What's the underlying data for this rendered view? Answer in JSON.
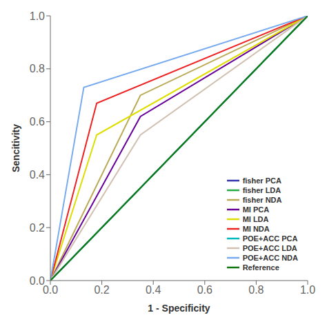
{
  "chart_data": {
    "type": "line",
    "title": "",
    "xlabel": "1 - Specificity",
    "ylabel": "Sencitivity",
    "xlim": [
      0.0,
      1.0
    ],
    "ylim": [
      0.0,
      1.0
    ],
    "xticks": [
      {
        "value": 0.0,
        "label": "0.0"
      },
      0.2,
      0.4,
      0.6,
      0.8,
      {
        "value": 1.0,
        "label": "1.0"
      }
    ],
    "yticks": [
      {
        "value": 0.0,
        "label": "0.0"
      },
      0.2,
      0.4,
      0.6,
      0.8,
      {
        "value": 1.0,
        "label": "1.0"
      }
    ],
    "grid": false,
    "legend": "lower right",
    "series": [
      {
        "name": "fisher PCA",
        "color": "#3333AA",
        "x": [
          0.0,
          1.0
        ],
        "values": [
          0.0,
          1.0
        ]
      },
      {
        "name": "fisher LDA",
        "color": "#22AA44",
        "x": [
          0.0,
          1.0
        ],
        "values": [
          0.0,
          1.0
        ]
      },
      {
        "name": "fisher NDA",
        "color": "#BBAA55",
        "x": [
          0.0,
          0.35,
          1.0
        ],
        "values": [
          0.0,
          0.7,
          1.0
        ]
      },
      {
        "name": "MI PCA",
        "color": "#660099",
        "x": [
          0.0,
          0.35,
          1.0
        ],
        "values": [
          0.0,
          0.62,
          1.0
        ]
      },
      {
        "name": "MI LDA",
        "color": "#DDDD00",
        "x": [
          0.0,
          0.18,
          1.0
        ],
        "values": [
          0.0,
          0.55,
          1.0
        ]
      },
      {
        "name": "MI NDA",
        "color": "#EE2222",
        "x": [
          0.0,
          0.18,
          1.0
        ],
        "values": [
          0.0,
          0.67,
          1.0
        ]
      },
      {
        "name": "POE+ACC PCA",
        "color": "#00BBBB",
        "x": [
          0.0,
          1.0
        ],
        "values": [
          0.0,
          1.0
        ]
      },
      {
        "name": "POE+ACC LDA",
        "color": "#D0C0B0",
        "x": [
          0.0,
          0.35,
          1.0
        ],
        "values": [
          0.0,
          0.55,
          1.0
        ]
      },
      {
        "name": "POE+ACC NDA",
        "color": "#77AAEE",
        "x": [
          0.0,
          0.13,
          1.0
        ],
        "values": [
          0.0,
          0.73,
          1.0
        ]
      },
      {
        "name": "Reference",
        "color": "#117711",
        "x": [
          0.0,
          1.0
        ],
        "values": [
          0.0,
          1.0
        ]
      }
    ]
  }
}
